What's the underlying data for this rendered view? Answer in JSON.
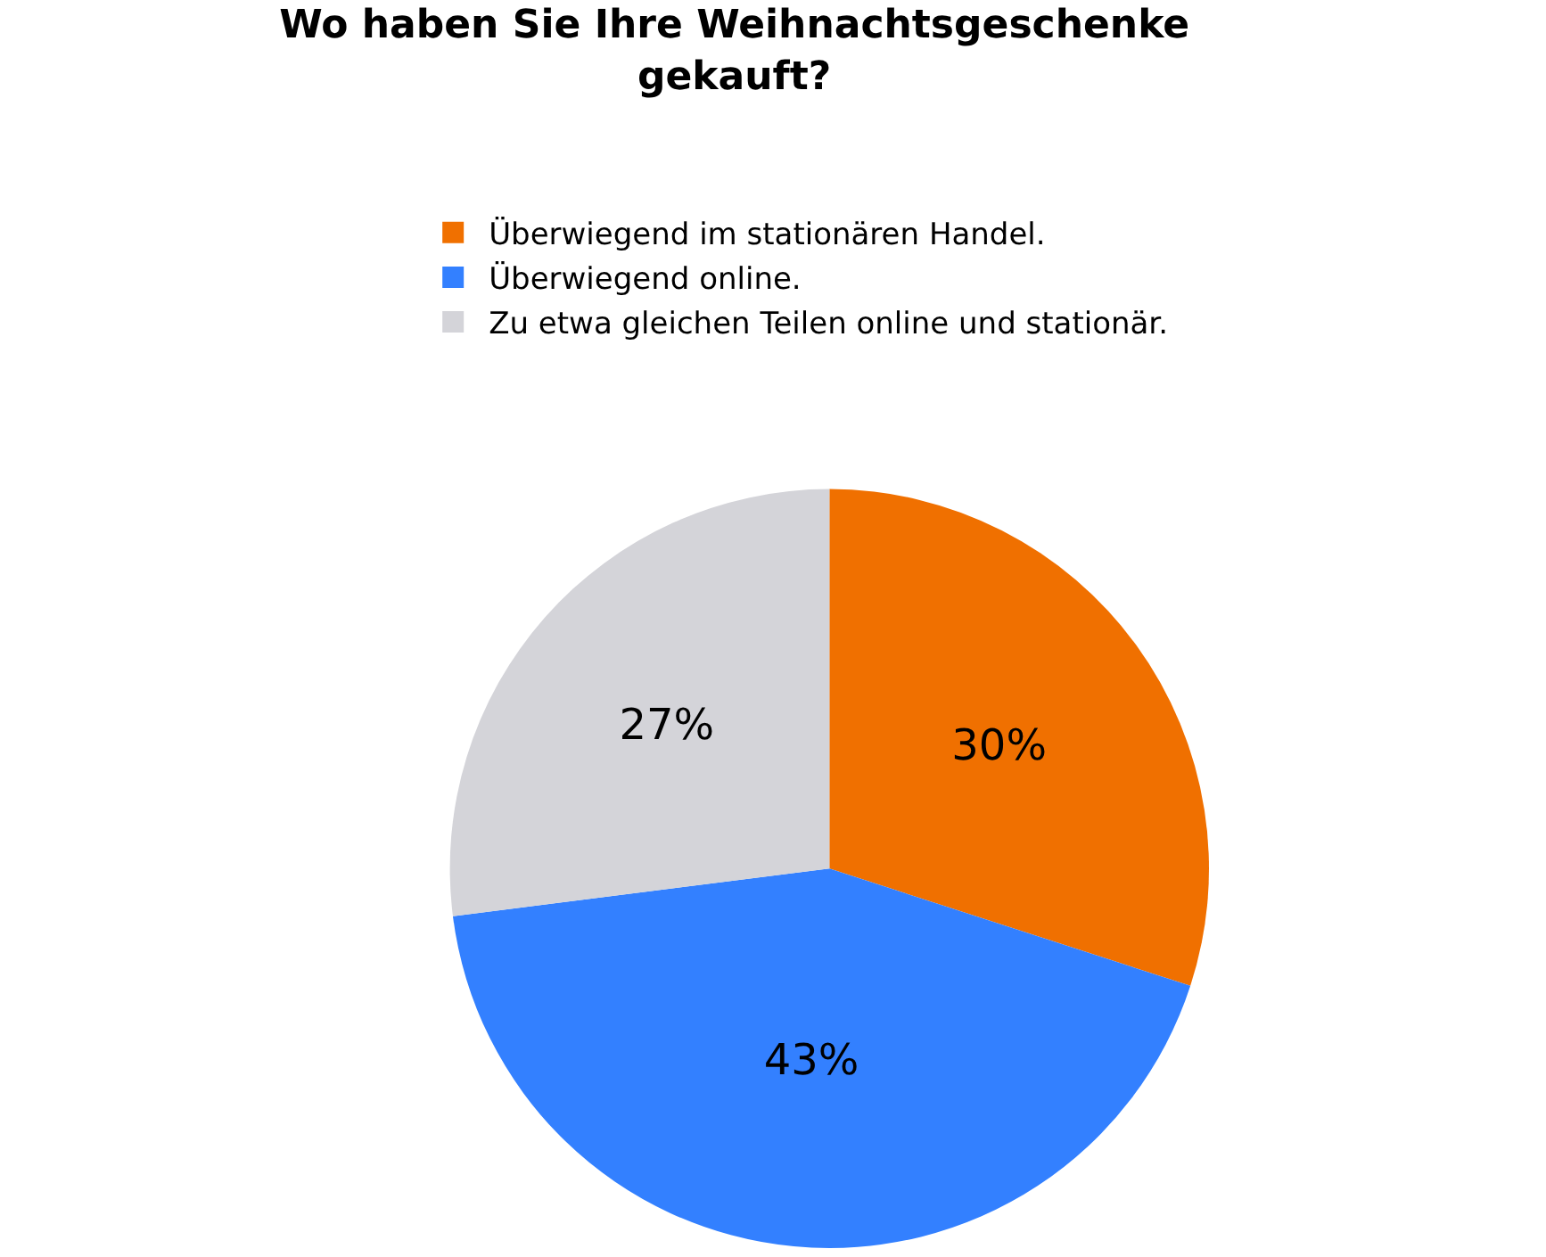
{
  "chart_data": {
    "type": "pie",
    "title": "Wo haben Sie Ihre Weihnachtsgeschenke gekauft?",
    "categories": [
      "Überwiegend im stationären Handel.",
      "Überwiegend online.",
      "Zu etwa gleichen Teilen online und stationär."
    ],
    "values": [
      30,
      43,
      27
    ],
    "colors": [
      "#f07000",
      "#3380ff",
      "#d4d4d9"
    ],
    "value_labels": [
      "30%",
      "43%",
      "27%"
    ],
    "legend": "top"
  }
}
